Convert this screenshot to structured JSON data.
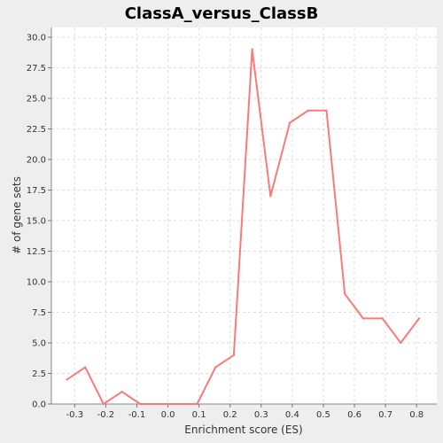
{
  "chart_data": {
    "type": "line",
    "title": "ClassA_versus_ClassB",
    "xlabel": "Enrichment score (ES)",
    "ylabel": "# of gene sets",
    "xlim": [
      -0.375,
      0.865
    ],
    "ylim": [
      0,
      30.8
    ],
    "xticks": [
      -0.3,
      -0.2,
      -0.1,
      0.0,
      0.1,
      0.2,
      0.3,
      0.4,
      0.5,
      0.6,
      0.7,
      0.8
    ],
    "xtick_labels": [
      "-0.3",
      "-0.2",
      "-0.1",
      "0.0",
      "0.1",
      "0.2",
      "0.3",
      "0.4",
      "0.5",
      "0.6",
      "0.7",
      "0.8"
    ],
    "yticks": [
      0,
      2.5,
      5,
      7.5,
      10,
      12.5,
      15,
      17.5,
      20,
      22.5,
      25,
      27.5,
      30
    ],
    "ytick_labels": [
      "0.0",
      "2.5",
      "5.0",
      "7.5",
      "10.0",
      "12.5",
      "15.0",
      "17.5",
      "20.0",
      "22.5",
      "25.0",
      "27.5",
      "30.0"
    ],
    "grid": true,
    "series": [
      {
        "color": "#f87b7b",
        "x": [
          -0.325,
          -0.266,
          -0.207,
          -0.148,
          -0.089,
          -0.03,
          0.029,
          0.094,
          0.153,
          0.212,
          0.271,
          0.33,
          0.392,
          0.451,
          0.51,
          0.569,
          0.628,
          0.69,
          0.749,
          0.808
        ],
        "y": [
          2,
          3,
          0,
          1,
          0,
          0,
          0,
          0,
          3,
          4,
          29,
          17,
          23,
          24,
          24,
          9,
          7,
          7,
          5,
          7
        ]
      }
    ]
  }
}
